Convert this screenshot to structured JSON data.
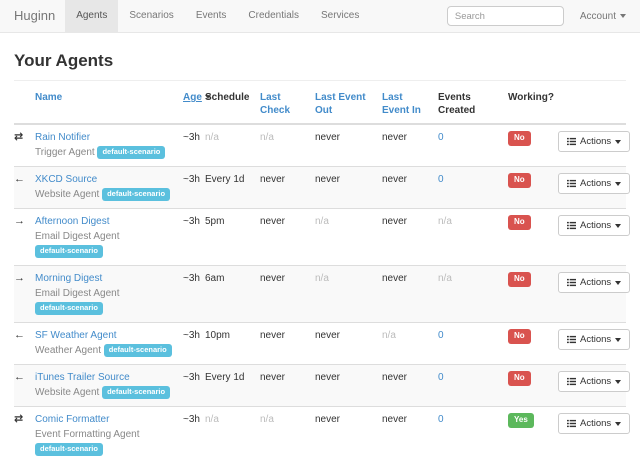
{
  "navbar": {
    "brand": "Huginn",
    "items": [
      {
        "label": "Agents",
        "active": true
      },
      {
        "label": "Scenarios",
        "active": false
      },
      {
        "label": "Events",
        "active": false
      },
      {
        "label": "Credentials",
        "active": false
      },
      {
        "label": "Services",
        "active": false
      }
    ],
    "search_placeholder": "Search",
    "account_label": "Account"
  },
  "page": {
    "title": "Your Agents"
  },
  "colors": {
    "link_blue": "#428bca",
    "badge_info": "#5bc0de",
    "badge_danger": "#d9534f",
    "badge_success": "#5cb85c"
  },
  "table": {
    "headers": [
      {
        "label": "Name",
        "link": true
      },
      {
        "label": "Age",
        "link": true,
        "sorted": "desc"
      },
      {
        "label": "Schedule",
        "link": false
      },
      {
        "label": "Last Check",
        "link": true
      },
      {
        "label": "Last Event Out",
        "link": true
      },
      {
        "label": "Last Event In",
        "link": true
      },
      {
        "label": "Events Created",
        "link": false
      },
      {
        "label": "Working?",
        "link": false
      }
    ],
    "actions_label": "Actions",
    "rows": [
      {
        "icon": "transfer-icon",
        "name": "Rain Notifier",
        "type": "Trigger Agent",
        "scenario": "default-scenario",
        "age": "~3h",
        "schedule": {
          "text": "n/a",
          "style": "muted"
        },
        "last_check": {
          "text": "n/a",
          "style": "muted"
        },
        "last_event_out": {
          "text": "never",
          "style": "plain"
        },
        "last_event_in": {
          "text": "never",
          "style": "plain"
        },
        "events_created": {
          "text": "0",
          "style": "link"
        },
        "working": {
          "label": "No",
          "status": "no"
        }
      },
      {
        "icon": "arrow-left-icon",
        "name": "XKCD Source",
        "type": "Website Agent",
        "scenario": "default-scenario",
        "age": "~3h",
        "schedule": {
          "text": "Every 1d",
          "style": "plain"
        },
        "last_check": {
          "text": "never",
          "style": "plain"
        },
        "last_event_out": {
          "text": "never",
          "style": "plain"
        },
        "last_event_in": {
          "text": "never",
          "style": "plain"
        },
        "events_created": {
          "text": "0",
          "style": "link"
        },
        "working": {
          "label": "No",
          "status": "no"
        }
      },
      {
        "icon": "arrow-right-icon",
        "name": "Afternoon Digest",
        "type": "Email Digest Agent",
        "scenario": "default-scenario",
        "age": "~3h",
        "schedule": {
          "text": "5pm",
          "style": "plain"
        },
        "last_check": {
          "text": "never",
          "style": "plain"
        },
        "last_event_out": {
          "text": "n/a",
          "style": "muted"
        },
        "last_event_in": {
          "text": "never",
          "style": "plain"
        },
        "events_created": {
          "text": "n/a",
          "style": "muted"
        },
        "working": {
          "label": "No",
          "status": "no"
        }
      },
      {
        "icon": "arrow-right-icon",
        "name": "Morning Digest",
        "type": "Email Digest Agent",
        "scenario": "default-scenario",
        "age": "~3h",
        "schedule": {
          "text": "6am",
          "style": "plain"
        },
        "last_check": {
          "text": "never",
          "style": "plain"
        },
        "last_event_out": {
          "text": "n/a",
          "style": "muted"
        },
        "last_event_in": {
          "text": "never",
          "style": "plain"
        },
        "events_created": {
          "text": "n/a",
          "style": "muted"
        },
        "working": {
          "label": "No",
          "status": "no"
        }
      },
      {
        "icon": "arrow-left-icon",
        "name": "SF Weather Agent",
        "type": "Weather Agent",
        "scenario": "default-scenario",
        "age": "~3h",
        "schedule": {
          "text": "10pm",
          "style": "plain"
        },
        "last_check": {
          "text": "never",
          "style": "plain"
        },
        "last_event_out": {
          "text": "never",
          "style": "plain"
        },
        "last_event_in": {
          "text": "n/a",
          "style": "muted"
        },
        "events_created": {
          "text": "0",
          "style": "link"
        },
        "working": {
          "label": "No",
          "status": "no"
        }
      },
      {
        "icon": "arrow-left-icon",
        "name": "iTunes Trailer Source",
        "type": "Website Agent",
        "scenario": "default-scenario",
        "age": "~3h",
        "schedule": {
          "text": "Every 1d",
          "style": "plain"
        },
        "last_check": {
          "text": "never",
          "style": "plain"
        },
        "last_event_out": {
          "text": "never",
          "style": "plain"
        },
        "last_event_in": {
          "text": "never",
          "style": "plain"
        },
        "events_created": {
          "text": "0",
          "style": "link"
        },
        "working": {
          "label": "No",
          "status": "no"
        }
      },
      {
        "icon": "transfer-icon",
        "name": "Comic Formatter",
        "type": "Event Formatting Agent",
        "scenario": "default-scenario",
        "age": "~3h",
        "schedule": {
          "text": "n/a",
          "style": "muted"
        },
        "last_check": {
          "text": "n/a",
          "style": "muted"
        },
        "last_event_out": {
          "text": "never",
          "style": "plain"
        },
        "last_event_in": {
          "text": "never",
          "style": "plain"
        },
        "events_created": {
          "text": "0",
          "style": "link"
        },
        "working": {
          "label": "Yes",
          "status": "yes"
        }
      }
    ]
  }
}
